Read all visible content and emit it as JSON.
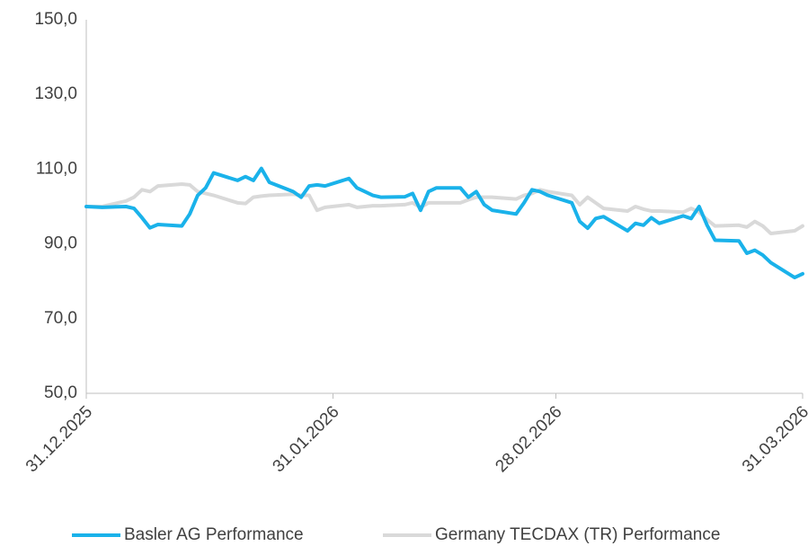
{
  "chart_data": {
    "type": "line",
    "x": [
      "2025-12-31",
      "2026-01-02",
      "2026-01-05",
      "2026-01-06",
      "2026-01-07",
      "2026-01-08",
      "2026-01-09",
      "2026-01-12",
      "2026-01-13",
      "2026-01-14",
      "2026-01-15",
      "2026-01-16",
      "2026-01-19",
      "2026-01-20",
      "2026-01-21",
      "2026-01-22",
      "2026-01-23",
      "2026-01-26",
      "2026-01-27",
      "2026-01-28",
      "2026-01-29",
      "2026-01-30",
      "2026-02-02",
      "2026-02-03",
      "2026-02-04",
      "2026-02-05",
      "2026-02-06",
      "2026-02-09",
      "2026-02-10",
      "2026-02-11",
      "2026-02-12",
      "2026-02-13",
      "2026-02-16",
      "2026-02-17",
      "2026-02-18",
      "2026-02-19",
      "2026-02-20",
      "2026-02-23",
      "2026-02-24",
      "2026-02-25",
      "2026-02-26",
      "2026-02-27",
      "2026-03-02",
      "2026-03-03",
      "2026-03-04",
      "2026-03-05",
      "2026-03-06",
      "2026-03-09",
      "2026-03-10",
      "2026-03-11",
      "2026-03-12",
      "2026-03-13",
      "2026-03-16",
      "2026-03-17",
      "2026-03-18",
      "2026-03-19",
      "2026-03-20",
      "2026-03-23",
      "2026-03-24",
      "2026-03-25",
      "2026-03-26",
      "2026-03-27",
      "2026-03-30",
      "2026-03-31"
    ],
    "series": [
      {
        "name": "Basler AG Performance",
        "color": "#1ab2ea",
        "values": [
          100,
          99.8,
          100,
          99.5,
          97,
          94.3,
          95.2,
          94.8,
          98,
          103,
          105,
          109,
          107,
          108,
          107,
          110.2,
          106.5,
          104,
          102.5,
          105.5,
          105.8,
          105.5,
          107.5,
          105,
          104,
          103,
          102.5,
          102.6,
          103.5,
          99,
          104,
          105,
          105,
          102.5,
          104,
          100.5,
          99,
          98,
          101,
          104.5,
          104,
          103,
          101,
          96,
          94.2,
          96.8,
          97.3,
          93.5,
          95.5,
          95,
          97,
          95.5,
          97.5,
          96.8,
          100,
          95,
          91,
          90.8,
          87.5,
          88.3,
          87,
          85,
          81,
          82
        ]
      },
      {
        "name": "Germany TECDAX (TR) Performance",
        "color": "#d9d9d9",
        "values": [
          100,
          100,
          101.5,
          102.5,
          104.5,
          104,
          105.5,
          106,
          105.8,
          104,
          103.5,
          103,
          101,
          100.8,
          102.5,
          102.8,
          103,
          103.3,
          103,
          103,
          99,
          99.8,
          100.5,
          99.8,
          100,
          100.2,
          100.2,
          100.5,
          101,
          99.8,
          101,
          101,
          101,
          101.8,
          102.5,
          102.5,
          102.5,
          102,
          103,
          103.5,
          104.5,
          104,
          103,
          100.5,
          102.5,
          101,
          99.5,
          98.8,
          100,
          99.3,
          98.8,
          98.8,
          98.5,
          99.5,
          98.5,
          96.5,
          94.8,
          95,
          94.5,
          96,
          94.8,
          92.8,
          93.5,
          94.8
        ]
      }
    ],
    "xlim": [
      "2025-12-31",
      "2026-03-31"
    ],
    "xticks": [
      {
        "value": "2025-12-31",
        "label": "31.12.2025"
      },
      {
        "value": "2026-01-31",
        "label": "31.01.2026"
      },
      {
        "value": "2026-02-28",
        "label": "28.02.2026"
      },
      {
        "value": "2026-03-31",
        "label": "31.03.2026"
      }
    ],
    "ylim": [
      50,
      150
    ],
    "yticks": [
      {
        "value": 50,
        "label": "50,0"
      },
      {
        "value": 70,
        "label": "70,0"
      },
      {
        "value": 90,
        "label": "90,0"
      },
      {
        "value": 110,
        "label": "110,0"
      },
      {
        "value": 130,
        "label": "130,0"
      },
      {
        "value": 150,
        "label": "150,0"
      }
    ],
    "grid": false,
    "legend": "bottom"
  }
}
